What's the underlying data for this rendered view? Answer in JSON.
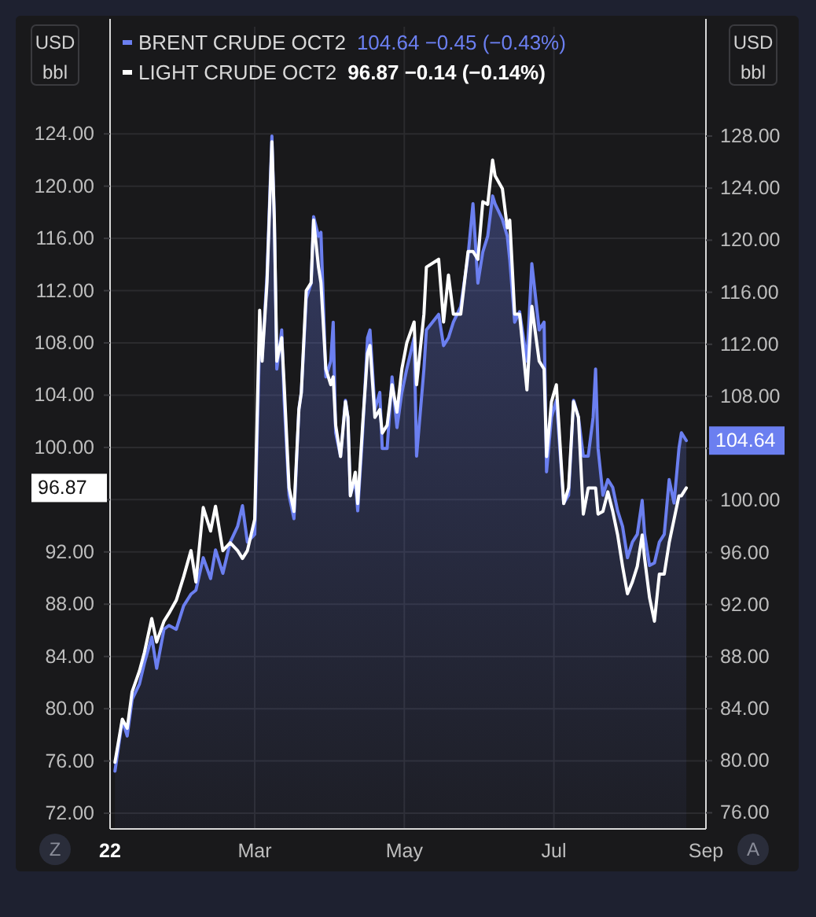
{
  "chart_data": {
    "type": "line",
    "ylabel": "USD bbl",
    "y2label": "USD bbl",
    "annotations": [
      "104.64  −0.45 (−0.43%)",
      "96.87  −0.14 (−0.14%)",
      "104.64",
      "96.87",
      "Z",
      "A"
    ],
    "x": [
      "2022-01-03",
      "2022-01-06",
      "2022-01-08",
      "2022-01-10",
      "2022-01-13",
      "2022-01-15",
      "2022-01-18",
      "2022-01-20",
      "2022-01-23",
      "2022-01-25",
      "2022-01-28",
      "2022-01-31",
      "2022-02-03",
      "2022-02-05",
      "2022-02-08",
      "2022-02-11",
      "2022-02-13",
      "2022-02-16",
      "2022-02-19",
      "2022-02-22",
      "2022-02-24",
      "2022-02-26",
      "2022-03-01",
      "2022-03-03",
      "2022-03-04",
      "2022-03-06",
      "2022-03-08",
      "2022-03-09",
      "2022-03-10",
      "2022-03-12",
      "2022-03-13",
      "2022-03-15",
      "2022-03-17",
      "2022-03-19",
      "2022-03-20",
      "2022-03-22",
      "2022-03-24",
      "2022-03-25",
      "2022-03-27",
      "2022-03-28",
      "2022-03-30",
      "2022-04-01",
      "2022-04-02",
      "2022-04-03",
      "2022-04-05",
      "2022-04-07",
      "2022-04-08",
      "2022-04-09",
      "2022-04-11",
      "2022-04-12",
      "2022-04-14",
      "2022-04-16",
      "2022-04-17",
      "2022-04-19",
      "2022-04-21",
      "2022-04-22",
      "2022-04-24",
      "2022-04-26",
      "2022-04-28",
      "2022-04-30",
      "2022-05-02",
      "2022-05-05",
      "2022-05-06",
      "2022-05-09",
      "2022-05-10",
      "2022-05-15",
      "2022-05-17",
      "2022-05-19",
      "2022-05-21",
      "2022-05-24",
      "2022-05-27",
      "2022-05-29",
      "2022-05-31",
      "2022-06-02",
      "2022-06-04",
      "2022-06-06",
      "2022-06-07",
      "2022-06-10",
      "2022-06-12",
      "2022-06-13",
      "2022-06-15",
      "2022-06-17",
      "2022-06-20",
      "2022-06-22",
      "2022-06-25",
      "2022-06-27",
      "2022-06-28",
      "2022-06-30",
      "2022-07-02",
      "2022-07-05",
      "2022-07-07",
      "2022-07-09",
      "2022-07-11",
      "2022-07-13",
      "2022-07-15",
      "2022-07-17",
      "2022-07-18",
      "2022-07-19",
      "2022-07-21",
      "2022-07-23",
      "2022-07-25",
      "2022-07-27",
      "2022-07-29",
      "2022-07-31",
      "2022-08-02",
      "2022-08-04",
      "2022-08-06",
      "2022-08-07",
      "2022-08-09",
      "2022-08-11",
      "2022-08-13",
      "2022-08-15",
      "2022-08-17",
      "2022-08-19",
      "2022-08-21",
      "2022-08-22",
      "2022-08-24"
    ],
    "series": [
      {
        "name": "BRENT CRUDE OCT2",
        "type": "area",
        "axis": "y2",
        "color": "#6b7ff0",
        "values": [
          79.2,
          83.1,
          81.9,
          84.7,
          85.9,
          87.5,
          89.5,
          87.1,
          90.1,
          90.4,
          90.1,
          91.9,
          92.8,
          93.1,
          95.6,
          94.0,
          96.2,
          94.4,
          96.8,
          98.0,
          99.6,
          96.8,
          97.4,
          112.5,
          110.9,
          117.3,
          128.0,
          121.6,
          110.1,
          113.1,
          107.7,
          100.4,
          98.6,
          107.0,
          108.3,
          115.5,
          116.7,
          121.8,
          120.3,
          120.6,
          109.5,
          110.7,
          113.7,
          105.2,
          103.4,
          107.7,
          106.4,
          100.4,
          101.6,
          99.2,
          105.2,
          112.5,
          113.1,
          107.0,
          108.3,
          104.0,
          104.0,
          109.5,
          105.6,
          108.3,
          110.1,
          112.5,
          103.4,
          110.1,
          113.1,
          114.3,
          111.9,
          112.5,
          113.7,
          114.9,
          118.8,
          122.8,
          116.7,
          119.1,
          120.3,
          123.4,
          122.8,
          121.6,
          120.3,
          118.5,
          113.7,
          114.5,
          110.7,
          118.2,
          113.1,
          113.7,
          102.2,
          106.4,
          107.7,
          99.8,
          100.4,
          107.7,
          106.4,
          103.4,
          103.4,
          106.4,
          110.1,
          104.0,
          100.4,
          101.6,
          101.0,
          99.2,
          98.0,
          95.6,
          96.8,
          97.4,
          100.0,
          97.4,
          95.0,
          95.2,
          96.8,
          97.4,
          101.6,
          99.8,
          104.0,
          105.2,
          104.6
        ]
      },
      {
        "name": "LIGHT CRUDE OCT2",
        "type": "line",
        "color": "#ffffff",
        "values": [
          75.9,
          79.2,
          78.5,
          81.3,
          82.9,
          84.3,
          86.9,
          85.1,
          86.7,
          87.3,
          88.3,
          90.1,
          92.1,
          89.7,
          95.4,
          93.6,
          95.5,
          92.1,
          92.7,
          92.1,
          91.5,
          92.1,
          94.5,
          110.5,
          106.6,
          112.6,
          123.4,
          117.4,
          106.6,
          108.4,
          104.8,
          96.9,
          95.1,
          102.9,
          104.2,
          112.0,
          112.6,
          117.4,
          113.8,
          112.6,
          106.0,
          104.8,
          105.4,
          101.7,
          99.3,
          103.5,
          102.3,
          96.3,
          98.1,
          95.7,
          101.7,
          107.2,
          107.8,
          102.3,
          102.9,
          101.1,
          101.7,
          104.8,
          102.7,
          106.0,
          108.0,
          109.6,
          104.8,
          110.2,
          113.8,
          114.4,
          109.6,
          113.2,
          110.2,
          110.2,
          115.0,
          115.0,
          114.4,
          118.8,
          118.6,
          122.0,
          120.8,
          119.8,
          116.8,
          117.4,
          110.2,
          110.2,
          104.4,
          110.8,
          106.6,
          106.0,
          99.3,
          103.5,
          104.8,
          95.7,
          96.9,
          103.5,
          102.3,
          94.9,
          96.9,
          96.9,
          96.9,
          94.9,
          95.1,
          96.6,
          95.1,
          93.3,
          90.9,
          88.8,
          89.7,
          90.9,
          93.3,
          91.5,
          88.5,
          86.7,
          90.3,
          90.3,
          92.7,
          94.5,
          96.3,
          96.3,
          96.9
        ]
      }
    ],
    "xlim": [
      "2022-01-01",
      "2022-09-01"
    ],
    "xticks": [
      {
        "value": "2022-01-01",
        "label": "22"
      },
      {
        "value": "2022-03-01",
        "label": "Mar"
      },
      {
        "value": "2022-05-01",
        "label": "May"
      },
      {
        "value": "2022-07-01",
        "label": "Jul"
      },
      {
        "value": "2022-09-01",
        "label": "Sep"
      }
    ],
    "ylim": [
      70.8,
      132.2
    ],
    "yticks": [
      {
        "value": 72,
        "label": "72.00"
      },
      {
        "value": 76,
        "label": "76.00"
      },
      {
        "value": 80,
        "label": "80.00"
      },
      {
        "value": 84,
        "label": "84.00"
      },
      {
        "value": 88,
        "label": "88.00"
      },
      {
        "value": 92,
        "label": "92.00"
      },
      {
        "value": 96,
        "label": null
      },
      {
        "value": 100,
        "label": "100.00"
      },
      {
        "value": 104,
        "label": "104.00"
      },
      {
        "value": 108,
        "label": "108.00"
      },
      {
        "value": 112,
        "label": "112.00"
      },
      {
        "value": 116,
        "label": "116.00"
      },
      {
        "value": 120,
        "label": "120.00"
      },
      {
        "value": 124,
        "label": "124.00"
      }
    ],
    "y2lim": [
      74.76,
      136.4
    ],
    "y2ticks": [
      {
        "value": 76,
        "label": "76.00"
      },
      {
        "value": 80,
        "label": "80.00"
      },
      {
        "value": 84,
        "label": "84.00"
      },
      {
        "value": 88,
        "label": "88.00"
      },
      {
        "value": 92,
        "label": "92.00"
      },
      {
        "value": 96,
        "label": "96.00"
      },
      {
        "value": 100,
        "label": "100.00"
      },
      {
        "value": 104,
        "label": null
      },
      {
        "value": 108,
        "label": "108.00"
      },
      {
        "value": 112,
        "label": "112.00"
      },
      {
        "value": 116,
        "label": "116.00"
      },
      {
        "value": 120,
        "label": "120.00"
      },
      {
        "value": 124,
        "label": "124.00"
      },
      {
        "value": 128,
        "label": "128.00"
      }
    ],
    "grid": true,
    "legend": "top left"
  }
}
